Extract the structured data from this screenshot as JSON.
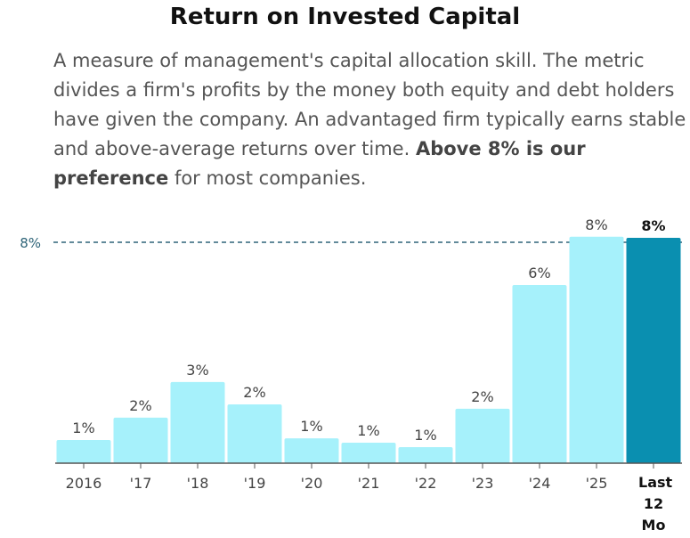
{
  "chart_data": {
    "type": "bar",
    "title": "Return on Invested Capital",
    "description": {
      "before": "A measure of management's capital allocation skill. The metric divides a firm's profits by the money both equity and debt holders have given the company. An advantaged firm typically earns stable and above-average returns over time. ",
      "bold": "Above 8% is our preference",
      "after": " for most companies."
    },
    "categories": [
      "2016",
      "'17",
      "'18",
      "'19",
      "'20",
      "'21",
      "'22",
      "'23",
      "'24",
      "'25",
      "Last 12 Mo"
    ],
    "values": [
      0.84,
      1.65,
      2.94,
      2.13,
      0.9,
      0.74,
      0.58,
      1.97,
      6.45,
      8.2,
      8.16
    ],
    "value_labels": [
      "1%",
      "2%",
      "3%",
      "2%",
      "1%",
      "1%",
      "1%",
      "2%",
      "6%",
      "8%",
      "8%"
    ],
    "colors": [
      "#a6f1fb",
      "#a6f1fb",
      "#a6f1fb",
      "#a6f1fb",
      "#a6f1fb",
      "#a6f1fb",
      "#a6f1fb",
      "#a6f1fb",
      "#a6f1fb",
      "#a6f1fb",
      "#0a8fb0"
    ],
    "ylim": [
      0,
      9
    ],
    "reference_line": {
      "value": 8,
      "label": "8%",
      "color": "#2e6478"
    }
  }
}
